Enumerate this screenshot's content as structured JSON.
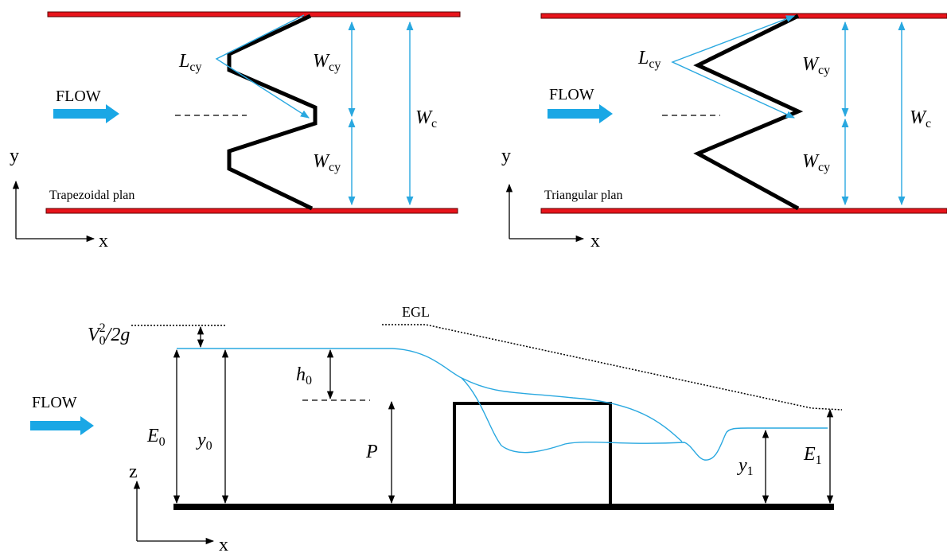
{
  "top_left": {
    "flow": "FLOW",
    "plan": "Trapezoidal plan",
    "axis_y": "y",
    "axis_x": "x",
    "l_cy": {
      "main": "L",
      "sub": "cy"
    },
    "w_cy_upper": {
      "main": "W",
      "sub": "cy"
    },
    "w_cy_lower": {
      "main": "W",
      "sub": "cy"
    },
    "w_c": {
      "main": "W",
      "sub": "c"
    }
  },
  "top_right": {
    "flow": "FLOW",
    "plan": "Triangular plan",
    "axis_y": "y",
    "axis_x": "x",
    "l_cy": {
      "main": "L",
      "sub": "cy"
    },
    "w_cy_upper": {
      "main": "W",
      "sub": "cy"
    },
    "w_cy_lower": {
      "main": "W",
      "sub": "cy"
    },
    "w_c": {
      "main": "W",
      "sub": "c"
    }
  },
  "bottom": {
    "flow": "FLOW",
    "egl": "EGL",
    "axis_z": "z",
    "axis_x": "x",
    "velocity_head": {
      "main": "V",
      "sub": "0",
      "sup": "2",
      "rest": "/2g"
    },
    "e0": {
      "main": "E",
      "sub": "0"
    },
    "y0": {
      "main": "y",
      "sub": "0"
    },
    "h0": {
      "main": "h",
      "sub": "0"
    },
    "p": {
      "main": "P"
    },
    "y1": {
      "main": "y",
      "sub": "1"
    },
    "e1": {
      "main": "E",
      "sub": "1"
    }
  }
}
